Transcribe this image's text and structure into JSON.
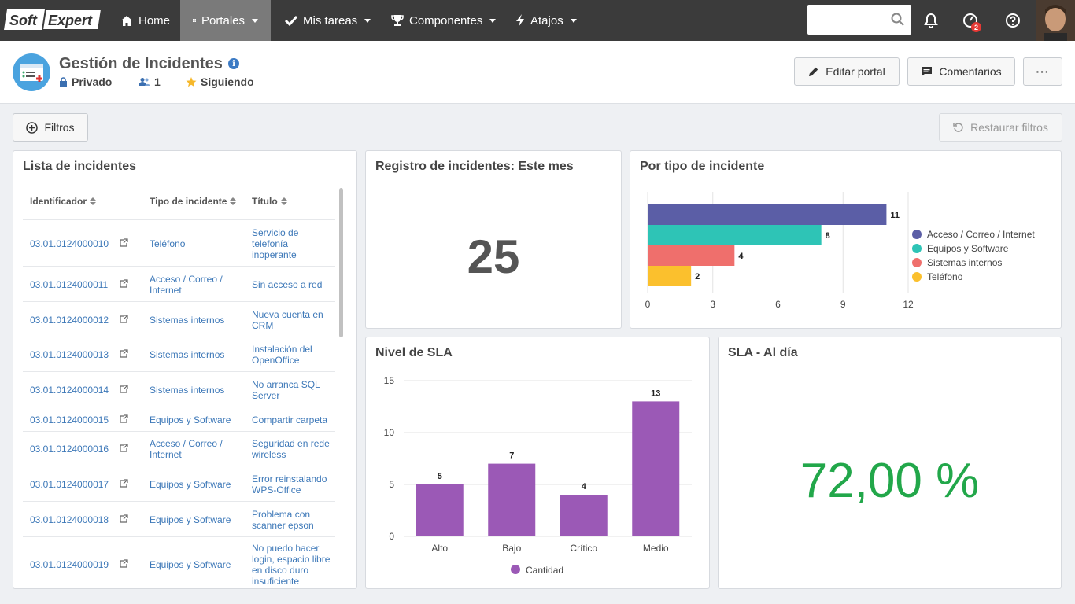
{
  "topbar": {
    "logo_left": "Soft",
    "logo_right": "Expert",
    "nav": [
      {
        "label": "Home",
        "icon": "home-icon"
      },
      {
        "label": "Portales",
        "icon": "grid-icon"
      },
      {
        "label": "Mis tareas",
        "icon": "check-icon"
      },
      {
        "label": "Componentes",
        "icon": "trophy-icon"
      },
      {
        "label": "Atajos",
        "icon": "bolt-icon"
      }
    ],
    "notification_count": "2",
    "colors": {
      "bar": "#3b3b3b",
      "active": "#7a7a7a"
    }
  },
  "header": {
    "title": "Gestión de Incidentes",
    "privacy": "Privado",
    "members": "1",
    "following": "Siguiendo",
    "edit_button": "Editar portal",
    "comments_button": "Comentarios",
    "more_button": "···"
  },
  "toolbar": {
    "filters_button": "Filtros",
    "restore_button": "Restaurar filtros"
  },
  "incident_list": {
    "title": "Lista de incidentes",
    "columns": [
      "Identificador",
      "Tipo de incidente",
      "Título"
    ],
    "rows": [
      {
        "id": "03.01.0124000010",
        "type": "Teléfono",
        "title": "Servicio de telefonía inoperante"
      },
      {
        "id": "03.01.0124000011",
        "type": "Acceso / Correo / Internet",
        "title": "Sin acceso a red"
      },
      {
        "id": "03.01.0124000012",
        "type": "Sistemas internos",
        "title": "Nueva cuenta en CRM"
      },
      {
        "id": "03.01.0124000013",
        "type": "Sistemas internos",
        "title": "Instalación del OpenOffice"
      },
      {
        "id": "03.01.0124000014",
        "type": "Sistemas internos",
        "title": "No arranca SQL Server"
      },
      {
        "id": "03.01.0124000015",
        "type": "Equipos y Software",
        "title": "Compartir carpeta"
      },
      {
        "id": "03.01.0124000016",
        "type": "Acceso / Correo / Internet",
        "title": "Seguridad en rede wireless"
      },
      {
        "id": "03.01.0124000017",
        "type": "Equipos y Software",
        "title": "Error reinstalando WPS-Office"
      },
      {
        "id": "03.01.0124000018",
        "type": "Equipos y Software",
        "title": "Problema con scanner epson"
      },
      {
        "id": "03.01.0124000019",
        "type": "Equipos y Software",
        "title": "No puedo hacer login, espacio libre en disco duro insuficiente"
      }
    ]
  },
  "monthly_register": {
    "title": "Registro de incidentes: Este mes",
    "value": "25"
  },
  "sla_today": {
    "title": "SLA - Al día",
    "value": "72,00 %",
    "color": "#22a74a"
  },
  "chart_data": [
    {
      "type": "bar",
      "orientation": "horizontal",
      "title": "Por tipo de incidente",
      "categories": [
        "Acceso / Correo / Internet",
        "Equipos y Software",
        "Sistemas internos",
        "Teléfono"
      ],
      "values": [
        11,
        8,
        4,
        2
      ],
      "colors": [
        "#5b5ea6",
        "#2ec4b6",
        "#ef6f6c",
        "#fbc02d"
      ],
      "xlim": [
        0,
        12
      ],
      "xticks": [
        "0",
        "3",
        "6",
        "9",
        "12"
      ],
      "legend": "right",
      "grid": true
    },
    {
      "type": "bar",
      "title": "Nivel de SLA",
      "categories": [
        "Alto",
        "Bajo",
        "Crítico",
        "Medio"
      ],
      "series": [
        {
          "name": "Cantidad",
          "values": [
            5,
            7,
            4,
            13
          ],
          "color": "#9b59b6"
        }
      ],
      "ylim": [
        0,
        15
      ],
      "yticks": [
        "0",
        "5",
        "10",
        "15"
      ],
      "legend": "bottom",
      "grid": true
    }
  ]
}
